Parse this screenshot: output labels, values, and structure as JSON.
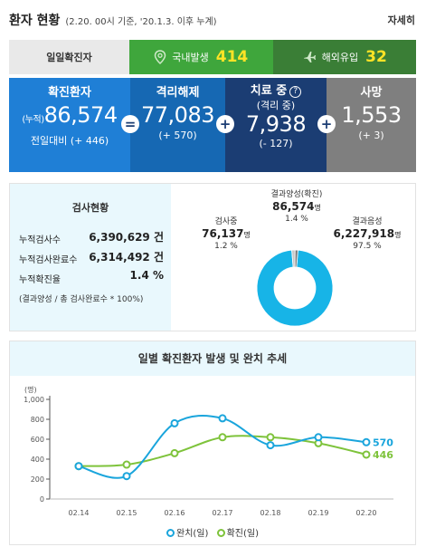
{
  "header": {
    "title": "환자 현황",
    "subtitle": "(2.20. 00시 기준, '20.1.3. 이후 누계)",
    "detail_link": "자세히"
  },
  "daily": {
    "label": "일일확진자",
    "domestic": {
      "label": "국내발생",
      "value": "414",
      "icon": "location-pin-icon"
    },
    "overseas": {
      "label": "해외유입",
      "value": "32",
      "icon": "airplane-icon"
    }
  },
  "stats": {
    "confirmed": {
      "label": "확진환자",
      "prefix": "(누적)",
      "value": "86,574",
      "change": "전일대비 (+ 446)"
    },
    "released": {
      "label": "격리해제",
      "value": "77,083",
      "change": "(+ 570)"
    },
    "treating": {
      "label": "치료 중",
      "sublabel": "(격리 중)",
      "value": "7,938",
      "change": "(- 127)"
    },
    "death": {
      "label": "사망",
      "value": "1,553",
      "change": "(+ 3)"
    },
    "operators": {
      "equals": "=",
      "plus": "+"
    }
  },
  "tests": {
    "title": "검사현황",
    "rows": [
      {
        "label": "누적검사수",
        "value": "6,390,629 건"
      },
      {
        "label": "누적검사완료수",
        "value": "6,314,492 건"
      },
      {
        "label": "누적확진율",
        "value": "1.4 %"
      }
    ],
    "note": "(결과양성 / 총 검사완료수 * 100%)",
    "donut": {
      "testing": {
        "label": "검사중",
        "value": "76,137",
        "unit": "명",
        "pct": "1.2 %"
      },
      "positive": {
        "label": "결과양성(확진)",
        "value": "86,574",
        "unit": "명",
        "pct": "1.4 %"
      },
      "negative": {
        "label": "결과음성",
        "value": "6,227,918",
        "unit": "명",
        "pct": "97.5 %"
      },
      "shares": {
        "negative": 97.5,
        "positive": 1.4,
        "testing": 1.2
      },
      "colors": {
        "negative": "#17b4e7",
        "positive": "#c8c8c8",
        "testing": "#7a7a7a"
      }
    }
  },
  "trend": {
    "title": "일별 확진환자 발생 및 완치 추세",
    "legend": {
      "released": "완치(일)",
      "confirmed": "확진(일)"
    },
    "end_labels": {
      "released": "570",
      "confirmed": "446"
    }
  },
  "chart_data": {
    "type": "line",
    "title": "일별 확진환자 발생 및 완치 추세",
    "ylabel": "(명)",
    "xlabel": "",
    "ylim": [
      0,
      1000
    ],
    "yticks": [
      0,
      200,
      400,
      600,
      800,
      1000
    ],
    "ytick_labels": [
      "0",
      "200",
      "400",
      "600",
      "800",
      "1,000"
    ],
    "x": [
      "02.14",
      "02.15",
      "02.16",
      "02.17",
      "02.18",
      "02.19",
      "02.20"
    ],
    "series": [
      {
        "name": "완치(일)",
        "color": "#1aa5dc",
        "values": [
          330,
          230,
          760,
          810,
          540,
          620,
          570
        ]
      },
      {
        "name": "확진(일)",
        "color": "#7ec33b",
        "values": [
          330,
          345,
          460,
          620,
          620,
          560,
          446
        ]
      }
    ],
    "grid": false,
    "legend_position": "bottom"
  }
}
